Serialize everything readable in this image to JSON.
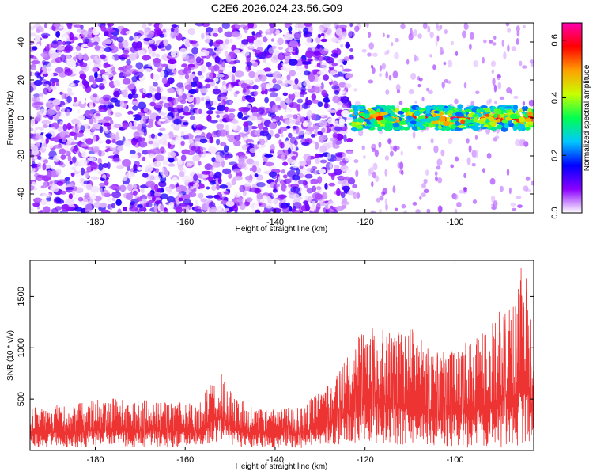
{
  "chart_data": [
    {
      "type": "heatmap",
      "title": "C2E6.2026.024.23.56.G09",
      "xlabel": "Height of straight line (km)",
      "ylabel": "Frequency (Hz)",
      "xlim": [
        -194.5,
        -82.5
      ],
      "ylim": [
        -50,
        50
      ],
      "xticks": [
        -180,
        -160,
        -140,
        -120,
        -100
      ],
      "yticks": [
        -40,
        -20,
        0,
        20,
        40
      ],
      "colorbar": {
        "label": "Normalized spectral amplitude",
        "range": [
          0.0,
          0.66
        ],
        "ticks": [
          0.0,
          0.2,
          0.4,
          0.6
        ],
        "colors": [
          "#ffffff",
          "#8a00ff",
          "#0000ff",
          "#00c8ff",
          "#00ff50",
          "#c8ff00",
          "#ffa000",
          "#ff0000",
          "#ff00b0"
        ]
      },
      "regions": [
        {
          "name": "broadband noise",
          "x": [
            -194.5,
            -123
          ],
          "freq": [
            -50,
            50
          ],
          "amplitude": [
            0.0,
            0.15
          ]
        },
        {
          "name": "tone near 0 Hz",
          "x": [
            -123,
            -82.5
          ],
          "freq": [
            -6,
            6
          ],
          "amplitude": [
            0.2,
            0.66
          ]
        }
      ]
    },
    {
      "type": "line",
      "xlabel": "Height of straight line (km)",
      "ylabel": "SNR (10 * v/v)",
      "xlim": [
        -194.5,
        -82.5
      ],
      "ylim": [
        0,
        1850
      ],
      "xticks": [
        -180,
        -160,
        -140,
        -120,
        -100
      ],
      "yticks": [
        500,
        1000,
        1500
      ],
      "color": "#ee3333",
      "envelope": {
        "x": [
          -194.5,
          -185,
          -175,
          -165,
          -157,
          -154,
          -152,
          -149,
          -145,
          -135,
          -128,
          -125,
          -122,
          -118,
          -114,
          -110,
          -106,
          -102,
          -98,
          -94,
          -91,
          -89,
          -87,
          -85,
          -83.5,
          -82.5
        ],
        "max": [
          420,
          460,
          520,
          470,
          480,
          720,
          760,
          560,
          420,
          420,
          640,
          820,
          1100,
          1220,
          1150,
          1230,
          1000,
          960,
          1050,
          1150,
          1270,
          1480,
          1400,
          1850,
          1550,
          780
        ],
        "min": [
          40,
          30,
          40,
          30,
          40,
          80,
          90,
          40,
          30,
          20,
          60,
          60,
          80,
          60,
          40,
          60,
          50,
          40,
          30,
          20,
          30,
          20,
          30,
          40,
          20,
          20
        ]
      }
    }
  ]
}
